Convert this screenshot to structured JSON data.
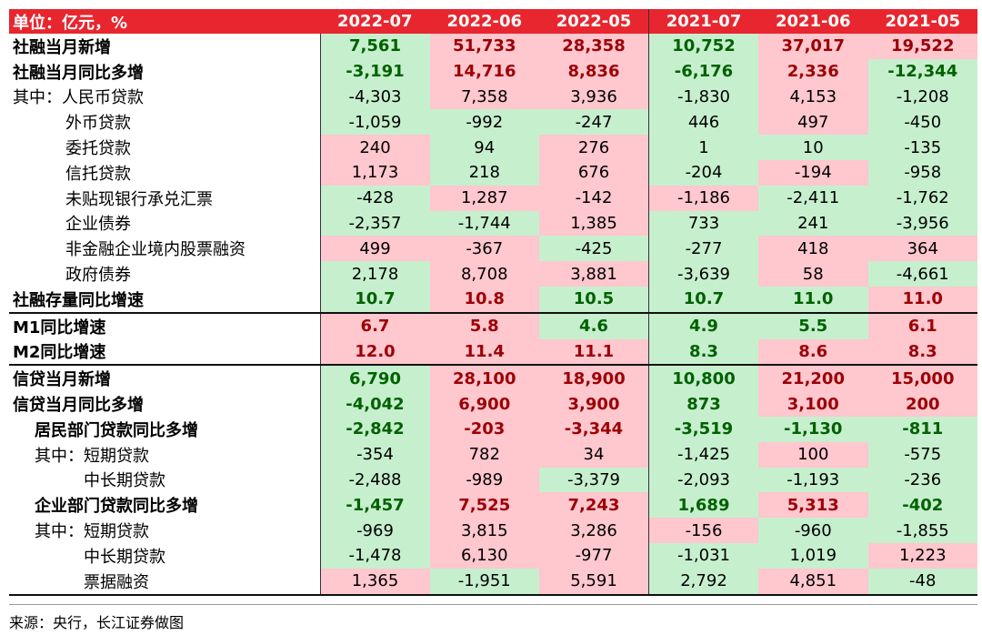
{
  "header": {
    "unit": "单位：亿元，%",
    "columns": [
      "2022-07",
      "2022-06",
      "2022-05",
      "2021-07",
      "2021-06",
      "2021-05"
    ]
  },
  "palette": {
    "green": {
      "fill": "#c6efce",
      "text": "#006100"
    },
    "red": {
      "fill": "#ffc7ce",
      "text": "#9c0006"
    }
  },
  "sections": [
    {
      "rows": [
        {
          "label": "社融当月新增",
          "level": 0,
          "bold": true,
          "values": [
            "7,561",
            "51,733",
            "28,358",
            "10,752",
            "37,017",
            "19,522"
          ],
          "fills": [
            "green",
            "red",
            "red",
            "green",
            "red",
            "red"
          ]
        },
        {
          "label": "社融当月同比多增",
          "level": 0,
          "bold": true,
          "values": [
            "-3,191",
            "14,716",
            "8,836",
            "-6,176",
            "2,336",
            "-12,344"
          ],
          "fills": [
            "green",
            "red",
            "red",
            "green",
            "red",
            "green"
          ]
        },
        {
          "label": "其中：人民币贷款",
          "level": 0,
          "bold": false,
          "values": [
            "-4,303",
            "7,358",
            "3,936",
            "-1,830",
            "4,153",
            "-1,208"
          ],
          "fills": [
            "green",
            "red",
            "red",
            "green",
            "red",
            "green"
          ]
        },
        {
          "label": "外币贷款",
          "level": 2,
          "bold": false,
          "values": [
            "-1,059",
            "-992",
            "-247",
            "446",
            "497",
            "-450"
          ],
          "fills": [
            "green",
            "green",
            "green",
            "green",
            "red",
            "green"
          ]
        },
        {
          "label": "委托贷款",
          "level": 2,
          "bold": false,
          "values": [
            "240",
            "94",
            "276",
            "1",
            "10",
            "-135"
          ],
          "fills": [
            "red",
            "green",
            "red",
            "green",
            "green",
            "green"
          ]
        },
        {
          "label": "信托贷款",
          "level": 2,
          "bold": false,
          "values": [
            "1,173",
            "218",
            "676",
            "-204",
            "-194",
            "-958"
          ],
          "fills": [
            "red",
            "green",
            "red",
            "green",
            "red",
            "green"
          ]
        },
        {
          "label": "未贴现银行承兑汇票",
          "level": 2,
          "bold": false,
          "values": [
            "-428",
            "1,287",
            "-142",
            "-1,186",
            "-2,411",
            "-1,762"
          ],
          "fills": [
            "green",
            "red",
            "red",
            "red",
            "green",
            "green"
          ]
        },
        {
          "label": "企业债券",
          "level": 2,
          "bold": false,
          "values": [
            "-2,357",
            "-1,744",
            "1,385",
            "733",
            "241",
            "-3,956"
          ],
          "fills": [
            "green",
            "green",
            "red",
            "green",
            "green",
            "green"
          ]
        },
        {
          "label": "非金融企业境内股票融资",
          "level": 2,
          "bold": false,
          "values": [
            "499",
            "-367",
            "-425",
            "-277",
            "418",
            "364"
          ],
          "fills": [
            "red",
            "red",
            "green",
            "green",
            "red",
            "red"
          ]
        },
        {
          "label": "政府债券",
          "level": 2,
          "bold": false,
          "values": [
            "2,178",
            "8,708",
            "3,881",
            "-3,639",
            "58",
            "-4,661"
          ],
          "fills": [
            "green",
            "red",
            "red",
            "green",
            "red",
            "green"
          ]
        },
        {
          "label": "社融存量同比增速",
          "level": 0,
          "bold": true,
          "values": [
            "10.7",
            "10.8",
            "10.5",
            "10.7",
            "11.0",
            "11.0"
          ],
          "fills": [
            "green",
            "red",
            "green",
            "green",
            "green",
            "red"
          ]
        }
      ]
    },
    {
      "rows": [
        {
          "label": "M1同比增速",
          "level": 0,
          "bold": true,
          "values": [
            "6.7",
            "5.8",
            "4.6",
            "4.9",
            "5.5",
            "6.1"
          ],
          "fills": [
            "red",
            "red",
            "green",
            "green",
            "green",
            "red"
          ]
        },
        {
          "label": "M2同比增速",
          "level": 0,
          "bold": true,
          "values": [
            "12.0",
            "11.4",
            "11.1",
            "8.3",
            "8.6",
            "8.3"
          ],
          "fills": [
            "red",
            "red",
            "red",
            "green",
            "red",
            "red"
          ]
        }
      ]
    },
    {
      "rows": [
        {
          "label": "信贷当月新增",
          "level": 0,
          "bold": true,
          "values": [
            "6,790",
            "28,100",
            "18,900",
            "10,800",
            "21,200",
            "15,000"
          ],
          "fills": [
            "green",
            "red",
            "red",
            "green",
            "red",
            "red"
          ]
        },
        {
          "label": "信贷当月同比多增",
          "level": 0,
          "bold": true,
          "values": [
            "-4,042",
            "6,900",
            "3,900",
            "873",
            "3,100",
            "200"
          ],
          "fills": [
            "green",
            "red",
            "red",
            "green",
            "red",
            "red"
          ]
        },
        {
          "label": "居民部门贷款同比多增",
          "level": 1,
          "bold": true,
          "values": [
            "-2,842",
            "-203",
            "-3,344",
            "-3,519",
            "-1,130",
            "-811"
          ],
          "fills": [
            "green",
            "red",
            "red",
            "green",
            "green",
            "green"
          ]
        },
        {
          "label": "其中：短期贷款",
          "level": 1,
          "bold": false,
          "values": [
            "-354",
            "782",
            "34",
            "-1,425",
            "100",
            "-575"
          ],
          "fills": [
            "green",
            "red",
            "red",
            "green",
            "red",
            "green"
          ]
        },
        {
          "label": "中长期贷款",
          "level": 3,
          "bold": false,
          "values": [
            "-2,488",
            "-989",
            "-3,379",
            "-2,093",
            "-1,193",
            "-236"
          ],
          "fills": [
            "green",
            "red",
            "green",
            "green",
            "green",
            "green"
          ]
        },
        {
          "label": "企业部门贷款同比多增",
          "level": 1,
          "bold": true,
          "values": [
            "-1,457",
            "7,525",
            "7,243",
            "1,689",
            "5,313",
            "-402"
          ],
          "fills": [
            "green",
            "red",
            "red",
            "green",
            "red",
            "green"
          ]
        },
        {
          "label": "其中：短期贷款",
          "level": 1,
          "bold": false,
          "values": [
            "-969",
            "3,815",
            "3,286",
            "-156",
            "-960",
            "-1,855"
          ],
          "fills": [
            "green",
            "red",
            "red",
            "red",
            "green",
            "green"
          ]
        },
        {
          "label": "中长期贷款",
          "level": 3,
          "bold": false,
          "values": [
            "-1,478",
            "6,130",
            "-977",
            "-1,031",
            "1,019",
            "1,223"
          ],
          "fills": [
            "green",
            "red",
            "red",
            "green",
            "green",
            "red"
          ]
        },
        {
          "label": "票据融资",
          "level": 3,
          "bold": false,
          "values": [
            "1,365",
            "-1,951",
            "5,591",
            "2,792",
            "4,851",
            "-48"
          ],
          "fills": [
            "red",
            "green",
            "red",
            "green",
            "red",
            "green"
          ]
        }
      ]
    }
  ],
  "source": "来源：央行，长江证券做图"
}
